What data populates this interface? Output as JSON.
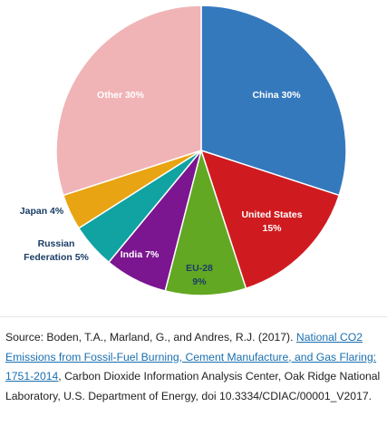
{
  "chart_data": {
    "type": "pie",
    "title": "",
    "slices": [
      {
        "name": "China",
        "value": 30,
        "label_line1": "China 30%",
        "label_line2": "",
        "color": "#3579bd",
        "label_color": "#ffffff"
      },
      {
        "name": "United States",
        "value": 15,
        "label_line1": "United States",
        "label_line2": "15%",
        "color": "#cf1b20",
        "label_color": "#ffffff"
      },
      {
        "name": "EU-28",
        "value": 9,
        "label_line1": "EU-28",
        "label_line2": "9%",
        "color": "#62a823",
        "label_color": "#1a3d66"
      },
      {
        "name": "India",
        "value": 7,
        "label_line1": "India 7%",
        "label_line2": "",
        "color": "#7b1590",
        "label_color": "#ffffff"
      },
      {
        "name": "Russian Federation",
        "value": 5,
        "label_line1": "Russian",
        "label_line2": "Federation 5%",
        "color": "#10a3a2",
        "label_color": "#1a3d66"
      },
      {
        "name": "Japan",
        "value": 4,
        "label_line1": "Japan 4%",
        "label_line2": "",
        "color": "#e8a412",
        "label_color": "#1a3d66"
      },
      {
        "name": "Other",
        "value": 30,
        "label_line1": "Other 30%",
        "label_line2": "",
        "color": "#f0b4b7",
        "label_color": "#ffffff"
      }
    ]
  },
  "source": {
    "prefix": "Source: Boden, T.A., Marland, G., and Andres, R.J. (2017). ",
    "link_text": "National CO2 Emissions from Fossil-Fuel Burning, Cement Manufacture, and Gas Flaring: 1751-2014",
    "suffix": ", Carbon Dioxide Information Analysis Center, Oak Ridge National Laboratory, U.S. Department of Energy, doi 10.3334/CDIAC/00001_V2017."
  }
}
